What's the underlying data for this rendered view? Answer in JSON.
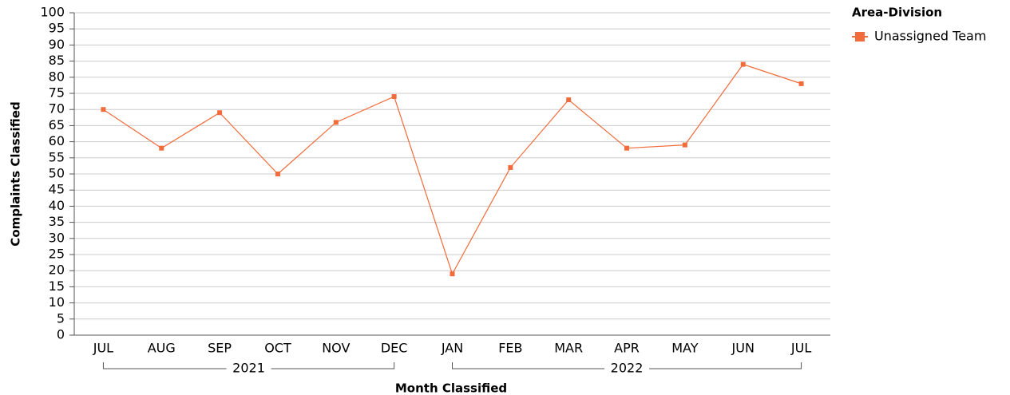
{
  "chart_data": {
    "type": "line",
    "x_label": "Month Classified",
    "y_label": "Complaints Classified",
    "categories": [
      "JUL",
      "AUG",
      "SEP",
      "OCT",
      "NOV",
      "DEC",
      "JAN",
      "FEB",
      "MAR",
      "APR",
      "MAY",
      "JUN",
      "JUL"
    ],
    "groups": [
      {
        "label": "2021",
        "start": 0,
        "end": 5
      },
      {
        "label": "2022",
        "start": 6,
        "end": 12
      }
    ],
    "legend_title": "Area-Division",
    "series": [
      {
        "name": "Unassigned Team",
        "color": "#f26b3a",
        "values": [
          70,
          58,
          69,
          50,
          66,
          74,
          19,
          52,
          73,
          58,
          59,
          84,
          78
        ]
      }
    ],
    "ylim": [
      0,
      100
    ],
    "yticks": [
      0,
      5,
      10,
      15,
      20,
      25,
      30,
      35,
      40,
      45,
      50,
      55,
      60,
      65,
      70,
      75,
      80,
      85,
      90,
      95,
      100
    ],
    "grid": true,
    "legend": "right"
  }
}
